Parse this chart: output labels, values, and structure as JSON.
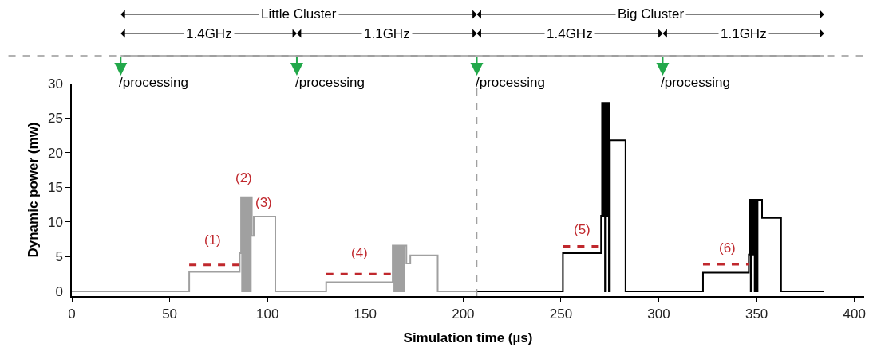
{
  "chart_data": {
    "type": "step",
    "xlabel": "Simulation time (µs)",
    "ylabel": "Dynamic power (mw)",
    "xlim": [
      0,
      405
    ],
    "ylim": [
      -0.7,
      30
    ],
    "xticks": [
      0,
      50,
      100,
      150,
      200,
      250,
      300,
      350,
      400
    ],
    "yticks": [
      0,
      5,
      10,
      15,
      20,
      25,
      30
    ],
    "series": [
      {
        "color": "#a0a0a0",
        "x": [
          0,
          60,
          85.8,
          86.5,
          87,
          87.5,
          88,
          88.5,
          89,
          89.5,
          90,
          90.5,
          91,
          91.5,
          92,
          93,
          104,
          130,
          164,
          164.8,
          165.5,
          166.2,
          167,
          167.8,
          168.5,
          169.2,
          170,
          171,
          173,
          187,
          207
        ],
        "values": [
          0,
          2.8,
          5.5,
          13.6,
          0,
          13.6,
          0,
          13.6,
          0,
          13.6,
          0,
          13.6,
          0,
          13.6,
          8,
          10.8,
          0,
          1.3,
          6.6,
          0,
          6.6,
          0,
          6.6,
          0,
          6.6,
          0,
          6.6,
          4,
          5.2,
          0,
          0
        ]
      },
      {
        "color": "#000000",
        "x": [
          207,
          251,
          270.5,
          271,
          271.5,
          272,
          272.5,
          273,
          273.5,
          274,
          274.5,
          275,
          283,
          322.6,
          346,
          346.5,
          347,
          347.5,
          348,
          348.5,
          349,
          349.5,
          350,
          350.5,
          352.8,
          362.5,
          384.5
        ],
        "values": [
          0,
          5.5,
          10.9,
          27.2,
          10.9,
          27.2,
          0,
          27.2,
          10.9,
          27.2,
          0,
          21.8,
          0,
          2.7,
          5.3,
          13.2,
          0,
          13.2,
          5.3,
          13.2,
          0,
          13.2,
          0,
          13.2,
          10.6,
          0,
          0
        ]
      },
      {
        "type": "line",
        "color": "#c0282d",
        "line_style": "dashed",
        "x": [
          60,
          85.8
        ],
        "values": [
          3.8,
          3.8
        ]
      },
      {
        "type": "line",
        "color": "#c0282d",
        "line_style": "dashed",
        "x": [
          130,
          163.5
        ],
        "values": [
          2.5,
          2.5
        ]
      },
      {
        "type": "line",
        "color": "#c0282d",
        "line_style": "dashed",
        "x": [
          251,
          270
        ],
        "values": [
          6.5,
          6.5
        ]
      },
      {
        "type": "line",
        "color": "#c0282d",
        "line_style": "dashed",
        "x": [
          322.6,
          346
        ],
        "values": [
          3.9,
          3.9
        ]
      }
    ],
    "ref_lines": [
      {
        "axis": "x",
        "value": 207,
        "color": "#a0a0a0",
        "line_style": "dashed"
      }
    ],
    "annotations": [
      "(1)",
      "(2)",
      "(3)",
      "(4)",
      "(5)",
      "(6)",
      "Little Cluster",
      "1.4GHz",
      "1.1GHz",
      "Big Cluster",
      "1.4GHz",
      "1.1GHz",
      "/processing",
      "/processing",
      "/processing",
      "/processing"
    ]
  }
}
